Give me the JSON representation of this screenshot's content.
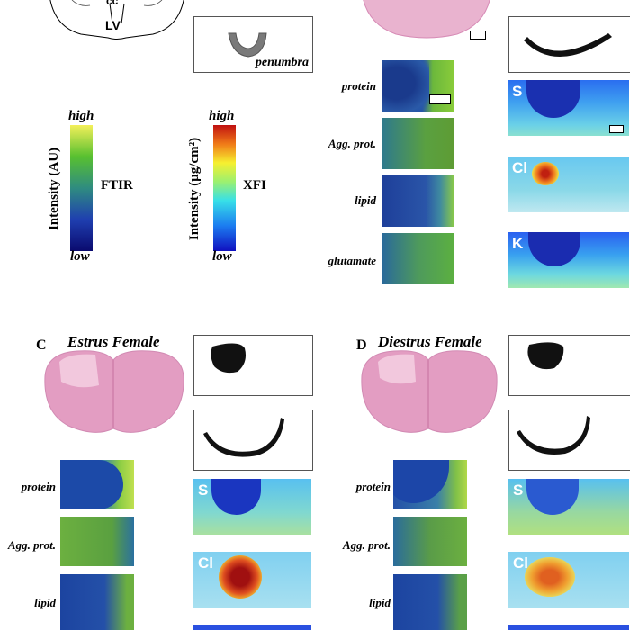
{
  "top_left_diagram": {
    "cc_label": "cc",
    "lv_label": "LV"
  },
  "penumbra_label": "penumbra",
  "ftir_legend": {
    "high": "high",
    "low": "low",
    "axis": "Intensity (AU)",
    "name": "FTIR"
  },
  "xfi_legend": {
    "high": "high",
    "low": "low",
    "axis": "Intensity (μg/cm²)",
    "name": "XFI"
  },
  "ftir_rows": [
    "protein",
    "Agg. prot.",
    "lipid",
    "glutamate"
  ],
  "xfi_elements": [
    "S",
    "Cl",
    "K"
  ],
  "panel_c": {
    "letter": "C",
    "title": "Estrus Female",
    "ftir_rows": [
      "protein",
      "Agg. prot.",
      "lipid"
    ],
    "xfi_elements": [
      "S",
      "Cl"
    ]
  },
  "panel_d": {
    "letter": "D",
    "title": "Diestrus Female",
    "ftir_rows": [
      "protein",
      "Agg. prot.",
      "lipid"
    ],
    "xfi_elements": [
      "S",
      "Cl"
    ]
  }
}
